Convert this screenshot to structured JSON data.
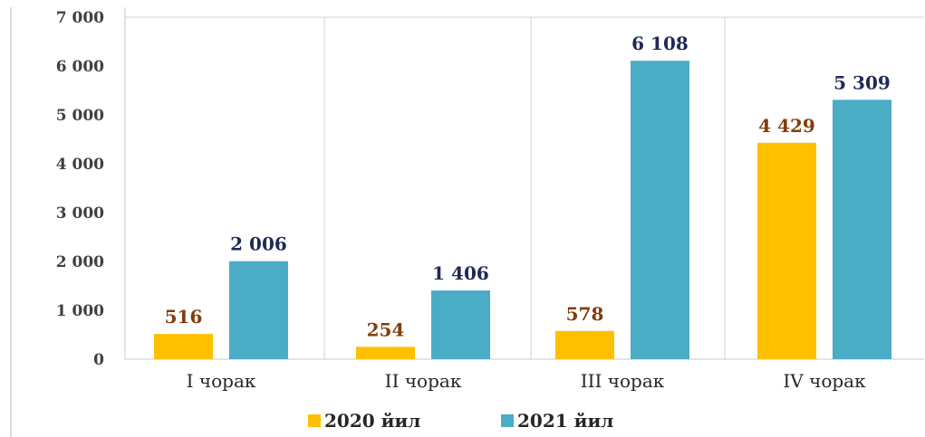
{
  "chart_data": {
    "type": "bar",
    "categories": [
      "I чорак",
      "II чорак",
      "III чорак",
      "IV чорак"
    ],
    "series": [
      {
        "name": "2020 йил",
        "values": [
          516,
          254,
          578,
          4429
        ],
        "labels": [
          "516",
          "254",
          "578",
          "4 429"
        ],
        "color": "#FFC000",
        "label_color": "#843C0C"
      },
      {
        "name": "2021 йил",
        "values": [
          2006,
          1406,
          6108,
          5309
        ],
        "labels": [
          "2 006",
          "1 406",
          "6 108",
          "5 309"
        ],
        "color": "#4BACC6",
        "label_color": "#1F2A56"
      }
    ],
    "yticks": [
      0,
      1000,
      2000,
      3000,
      4000,
      5000,
      6000,
      7000
    ],
    "ytick_labels": [
      "0",
      "1 000",
      "2 000",
      "3 000",
      "4 000",
      "5 000",
      "6 000",
      "7 000"
    ],
    "ylim": [
      0,
      7000
    ],
    "title": "",
    "xlabel": "",
    "ylabel": "",
    "grid": "vertical category separators",
    "legend": "bottom-center"
  }
}
